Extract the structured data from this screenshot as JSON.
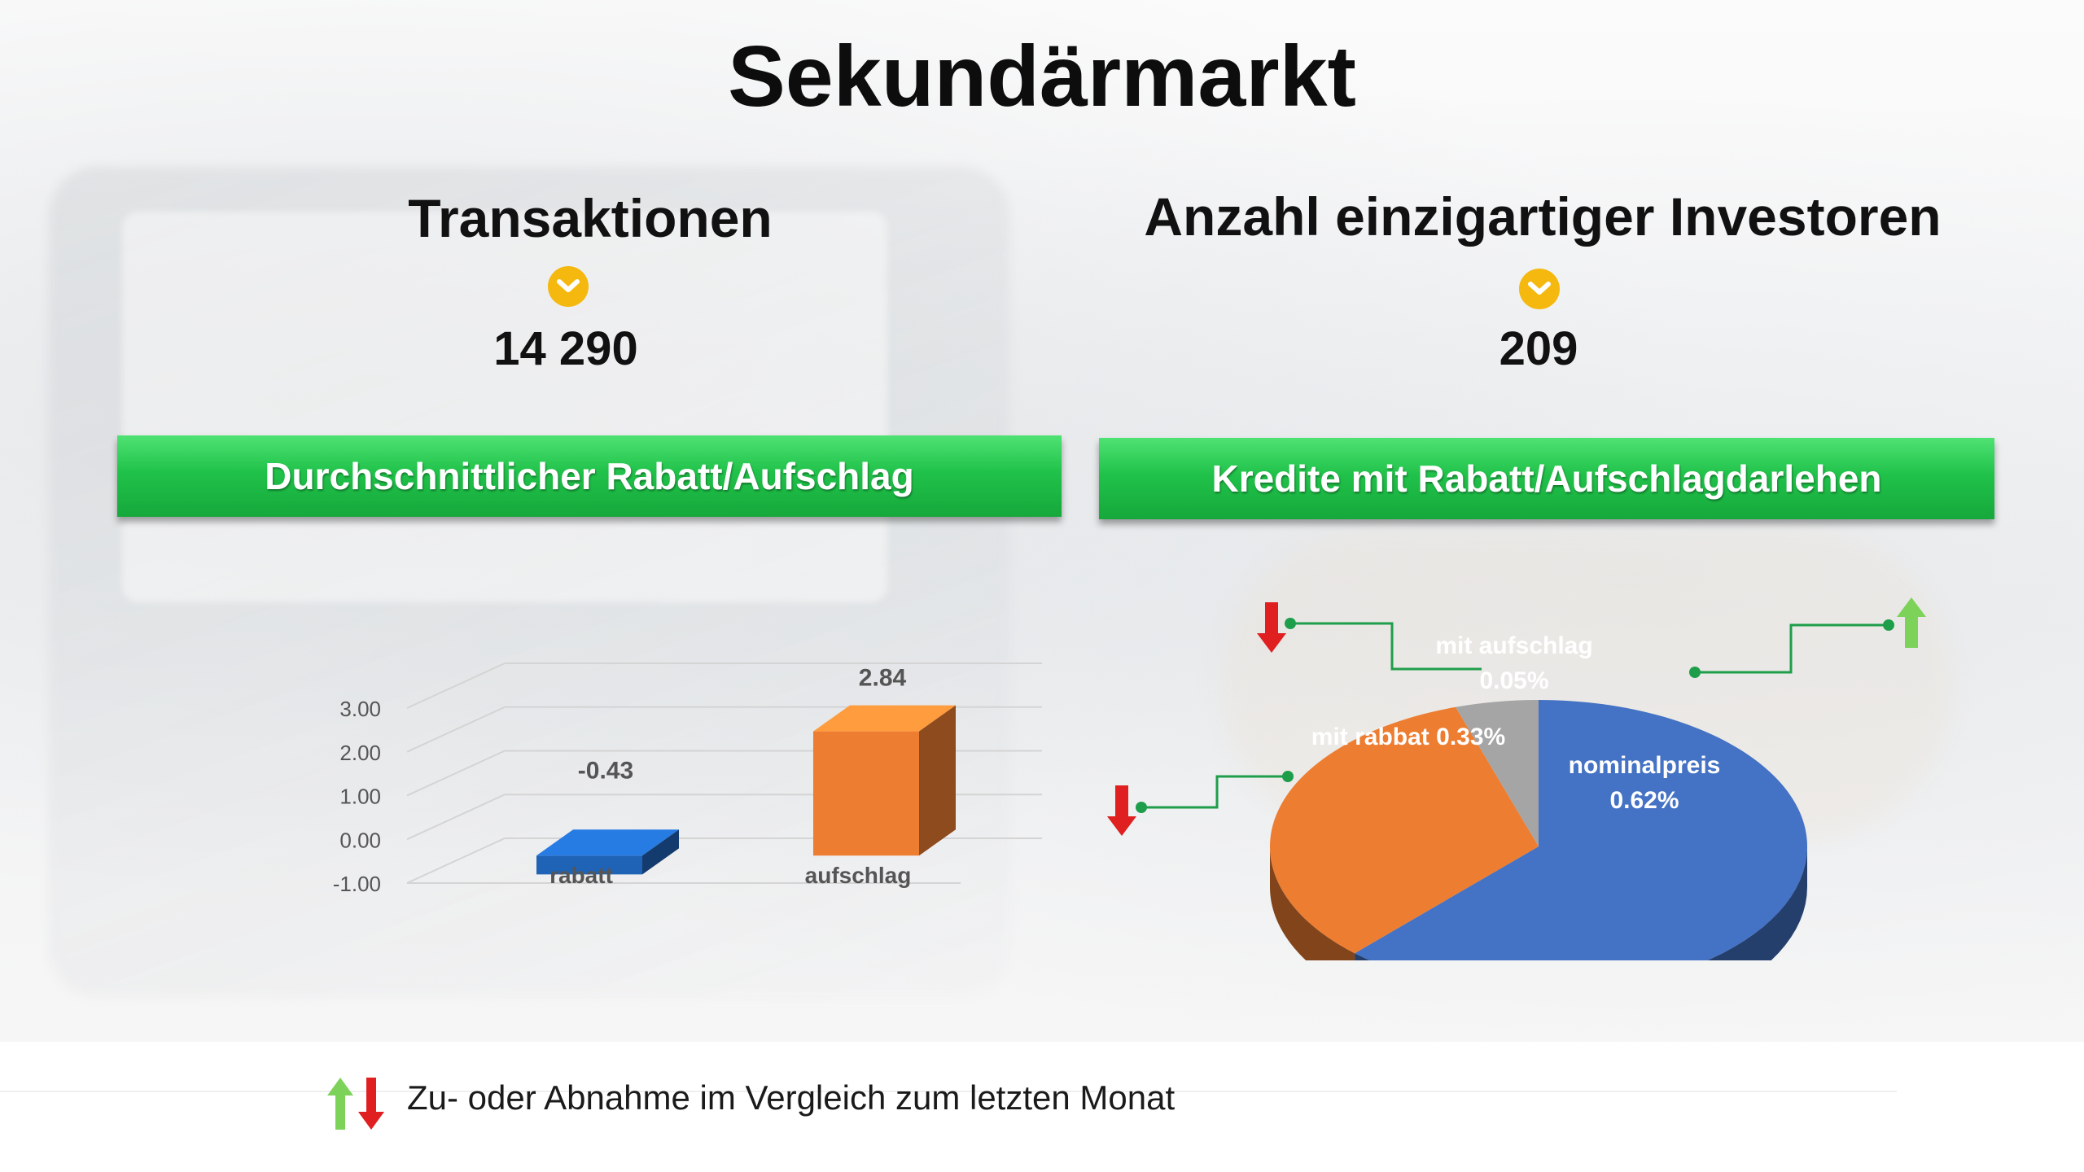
{
  "title": "Sekundärmarkt",
  "left": {
    "heading": "Transaktionen",
    "indicator_icon": "chevron-down-icon",
    "value": "14 290",
    "bar_title": "Durchschnittlicher Rabatt/Aufschlag"
  },
  "right": {
    "heading": "Anzahl einzigartiger Investoren",
    "indicator_icon": "chevron-down-icon",
    "value": "209",
    "bar_title": "Kredite mit Rabatt/Aufschlagdarlehen"
  },
  "footer": {
    "note": "Zu- oder Abnahme im Vergleich zum letzten Monat",
    "icons": [
      "arrow-up-icon",
      "arrow-down-icon"
    ]
  },
  "colors": {
    "accent_green": "#20c24a",
    "chevron_yellow": "#f5b80f",
    "blue": "#2e5fb8",
    "orange": "#ed7d31",
    "gray": "#a5a5a5",
    "arrow_red": "#e02020",
    "arrow_green": "#7dd35a",
    "connector_green": "#1e9e4a"
  },
  "chart_data": [
    {
      "type": "bar",
      "style": "3d",
      "categories": [
        "rabatt",
        "aufschlag"
      ],
      "values": [
        -0.43,
        2.84
      ],
      "data_labels": [
        "-0.43",
        "2.84"
      ],
      "y_ticks": [
        "3.00",
        "2.00",
        "1.00",
        "0.00",
        "-1.00"
      ],
      "ylim": [
        -1,
        3
      ],
      "bar_colors": [
        "#1f63b6",
        "#ed7d31"
      ],
      "grid": true
    },
    {
      "type": "pie",
      "style": "3d",
      "slices": [
        {
          "label": "nominalpreis",
          "value_text": "0.62%",
          "value": 0.62,
          "color": "#4472c4",
          "trend": "up"
        },
        {
          "label": "mit rabbat",
          "value_text": "0.33%",
          "value": 0.33,
          "color": "#ed7d31",
          "trend": "down"
        },
        {
          "label": "mit aufschlag",
          "value_text": "0.05%",
          "value": 0.05,
          "color": "#a5a5a5",
          "trend": "down"
        }
      ]
    }
  ]
}
